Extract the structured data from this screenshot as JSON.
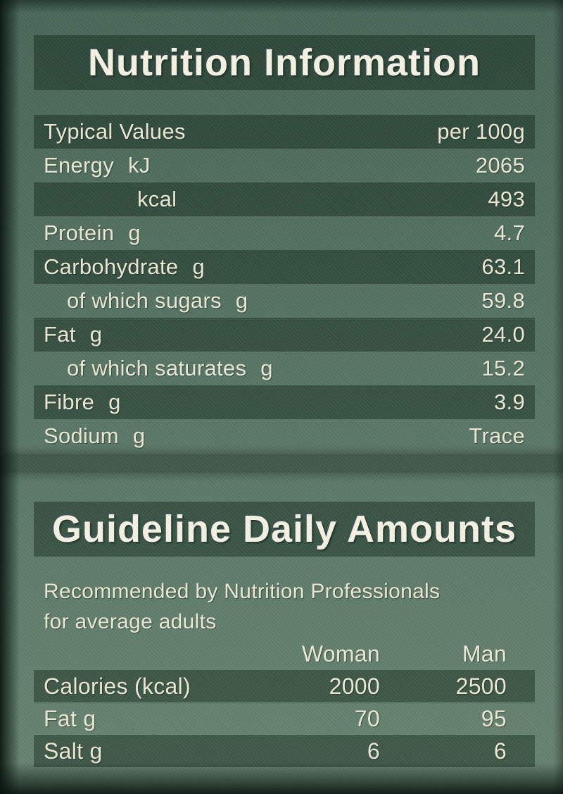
{
  "page": {
    "bg_top": "#476556",
    "bg_bottom": "#66826f",
    "band_color": "rgba(5,25,13,0.40)",
    "text_color": "#ece8d6"
  },
  "nutrition": {
    "title": "Nutrition Information",
    "rows": [
      {
        "label": "Typical Values",
        "unit": "",
        "value": "per 100g"
      },
      {
        "label": "Energy",
        "unit": "kJ",
        "value": "2065"
      },
      {
        "label": "",
        "unit": "kcal",
        "value": "493"
      },
      {
        "label": "Protein",
        "unit": "g",
        "value": "4.7"
      },
      {
        "label": "Carbohydrate",
        "unit": "g",
        "value": "63.1"
      },
      {
        "label": "of which sugars",
        "unit": "g",
        "value": "59.8"
      },
      {
        "label": "Fat",
        "unit": "g",
        "value": "24.0"
      },
      {
        "label": "of which saturates",
        "unit": "g",
        "value": "15.2"
      },
      {
        "label": "Fibre",
        "unit": "g",
        "value": "3.9"
      },
      {
        "label": "Sodium",
        "unit": "g",
        "value": "Trace"
      }
    ]
  },
  "gda": {
    "title": "Guideline Daily Amounts",
    "note_line1": "Recommended by Nutrition Professionals",
    "note_line2": "for average adults",
    "col_woman": "Woman",
    "col_man": "Man",
    "rows": [
      {
        "label": "Calories (kcal)",
        "woman": "2000",
        "man": "2500"
      },
      {
        "label": "Fat g",
        "woman": "70",
        "man": "95"
      },
      {
        "label": "Salt g",
        "woman": "6",
        "man": "6"
      }
    ]
  }
}
